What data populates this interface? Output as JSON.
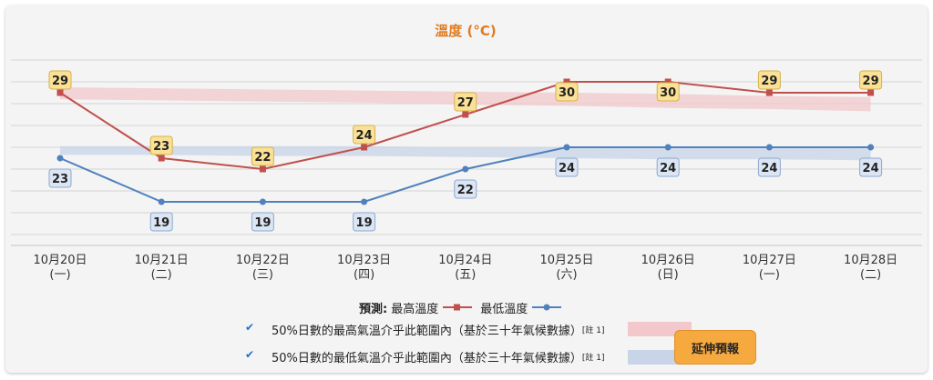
{
  "chart_data": {
    "type": "line",
    "title": "溫度 (°C)",
    "categories": [
      [
        "10月20日",
        "(一)"
      ],
      [
        "10月21日",
        "(二)"
      ],
      [
        "10月22日",
        "(三)"
      ],
      [
        "10月23日",
        "(四)"
      ],
      [
        "10月24日",
        "(五)"
      ],
      [
        "10月25日",
        "(六)"
      ],
      [
        "10月26日",
        "(日)"
      ],
      [
        "10月27日",
        "(一)"
      ],
      [
        "10月28日",
        "(二)"
      ]
    ],
    "series": [
      {
        "name": "最高溫度",
        "values": [
          29,
          23,
          22,
          24,
          27,
          30,
          30,
          29,
          29
        ],
        "color": "#c0504d"
      },
      {
        "name": "最低溫度",
        "values": [
          23,
          19,
          19,
          19,
          22,
          24,
          24,
          24,
          24
        ],
        "color": "#4f81bd"
      }
    ],
    "bands": {
      "max_range": {
        "upper": [
          29.5,
          29.4,
          29.3,
          29.2,
          29.1,
          29.0,
          28.9,
          28.7,
          28.6
        ],
        "lower": [
          28.4,
          28.3,
          28.2,
          28.1,
          27.9,
          27.8,
          27.6,
          27.5,
          27.3
        ],
        "color": "#f2c8cc"
      },
      "min_range": {
        "upper": [
          24.1,
          24.1,
          24.1,
          24.1,
          24.0,
          24.0,
          24.0,
          24.0,
          23.9
        ],
        "lower": [
          23.3,
          23.3,
          23.2,
          23.2,
          23.1,
          23.0,
          22.9,
          22.9,
          22.8
        ],
        "color": "#c8d4e8"
      }
    },
    "ylim": [
      15,
      33
    ],
    "grid": true
  },
  "legend": {
    "prefix": "預測:",
    "max_label": "最高溫度",
    "min_label": "最低溫度"
  },
  "ranges": {
    "max_text": "50%日數的最高氣溫介乎此範圍內（基於三十年氣候數據）",
    "min_text": "50%日數的最低氣溫介乎此範圍內（基於三十年氣候數據）",
    "note": "[註 1]"
  },
  "extend_button": "延伸預報",
  "colors": {
    "title": "#e07b20",
    "max_label_bg": "#fbe196",
    "max_label_border": "#d4b24a",
    "min_label_bg": "#dbe5f3",
    "min_label_border": "#8ea9cf"
  }
}
